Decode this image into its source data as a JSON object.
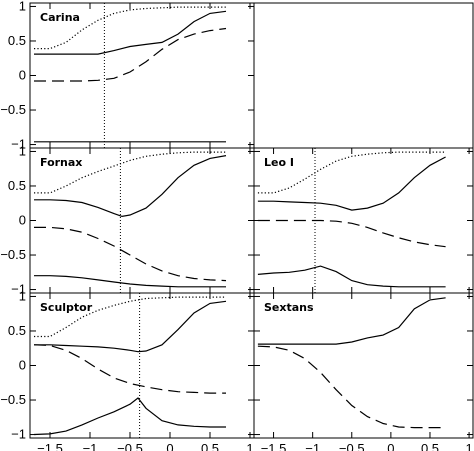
{
  "chart_data": {
    "type": "line",
    "layout": "3x2 grid of panels, top-right panel empty",
    "x_ticks": [
      -1.5,
      -1,
      -0.5,
      0,
      0.5,
      1
    ],
    "x_tick_labels": [
      "−1.5",
      "−1",
      "−0.5",
      "0",
      "0.5",
      "1"
    ],
    "y_ticks": [
      -1,
      -0.5,
      0,
      0.5,
      1
    ],
    "y_tick_labels": [
      "−1",
      "−0.5",
      "0",
      "0.5",
      "1"
    ],
    "xlim": [
      -1.75,
      1.05
    ],
    "ylim": [
      -1.05,
      1.05
    ],
    "panels": [
      {
        "label": "Carina",
        "vline_x": -0.82,
        "series": [
          {
            "style": "dotted",
            "x": [
              -1.7,
              -1.5,
              -1.3,
              -1.1,
              -0.9,
              -0.7,
              -0.5,
              -0.3,
              -0.1,
              0.1,
              0.3,
              0.5,
              0.7
            ],
            "y": [
              0.39,
              0.39,
              0.48,
              0.66,
              0.8,
              0.9,
              0.95,
              0.97,
              0.98,
              0.99,
              0.99,
              0.99,
              0.99
            ]
          },
          {
            "style": "solid",
            "x": [
              -1.7,
              -1.5,
              -1.3,
              -1.1,
              -0.9,
              -0.7,
              -0.5,
              -0.3,
              -0.1,
              0.1,
              0.3,
              0.5,
              0.7
            ],
            "y": [
              0.31,
              0.31,
              0.31,
              0.31,
              0.31,
              0.36,
              0.42,
              0.45,
              0.48,
              0.6,
              0.78,
              0.9,
              0.93
            ]
          },
          {
            "style": "dashed",
            "x": [
              -1.7,
              -1.5,
              -1.3,
              -1.1,
              -0.9,
              -0.7,
              -0.5,
              -0.3,
              -0.1,
              0.1,
              0.3,
              0.5,
              0.7
            ],
            "y": [
              -0.08,
              -0.08,
              -0.08,
              -0.08,
              -0.07,
              -0.04,
              0.05,
              0.2,
              0.38,
              0.52,
              0.6,
              0.65,
              0.68
            ]
          },
          {
            "style": "solid",
            "x": [
              -1.7,
              0.7
            ],
            "y": [
              -0.96,
              -0.96
            ]
          }
        ]
      },
      {
        "label": "Fornax",
        "vline_x": -0.62,
        "series": [
          {
            "style": "dotted",
            "x": [
              -1.7,
              -1.5,
              -1.3,
              -1.1,
              -0.9,
              -0.7,
              -0.5,
              -0.3,
              -0.1,
              0.1,
              0.3,
              0.5,
              0.7
            ],
            "y": [
              0.4,
              0.4,
              0.5,
              0.62,
              0.71,
              0.79,
              0.87,
              0.93,
              0.96,
              0.98,
              0.99,
              0.99,
              0.99
            ]
          },
          {
            "style": "solid",
            "x": [
              -1.7,
              -1.5,
              -1.3,
              -1.1,
              -0.9,
              -0.7,
              -0.6,
              -0.5,
              -0.3,
              -0.1,
              0.1,
              0.3,
              0.5,
              0.7
            ],
            "y": [
              0.3,
              0.3,
              0.29,
              0.26,
              0.19,
              0.1,
              0.06,
              0.08,
              0.18,
              0.38,
              0.62,
              0.8,
              0.9,
              0.94
            ]
          },
          {
            "style": "dashed",
            "x": [
              -1.7,
              -1.5,
              -1.3,
              -1.1,
              -0.9,
              -0.7,
              -0.5,
              -0.3,
              -0.1,
              0.1,
              0.3,
              0.5,
              0.7
            ],
            "y": [
              -0.1,
              -0.1,
              -0.12,
              -0.17,
              -0.26,
              -0.37,
              -0.5,
              -0.63,
              -0.73,
              -0.8,
              -0.84,
              -0.86,
              -0.87
            ]
          },
          {
            "style": "solid",
            "x": [
              -1.7,
              -1.5,
              -1.3,
              -1.1,
              -0.9,
              -0.7,
              -0.5,
              -0.3,
              -0.1,
              0.1,
              0.3,
              0.5,
              0.7
            ],
            "y": [
              -0.8,
              -0.8,
              -0.81,
              -0.83,
              -0.86,
              -0.89,
              -0.92,
              -0.94,
              -0.95,
              -0.96,
              -0.96,
              -0.96,
              -0.96
            ]
          }
        ]
      },
      {
        "label": "Leo I",
        "vline_x": -0.97,
        "series": [
          {
            "style": "dotted",
            "x": [
              -1.7,
              -1.5,
              -1.3,
              -1.1,
              -0.9,
              -0.7,
              -0.5,
              -0.3,
              -0.1,
              0.1,
              0.3,
              0.5,
              0.7
            ],
            "y": [
              0.4,
              0.4,
              0.47,
              0.6,
              0.74,
              0.86,
              0.93,
              0.96,
              0.98,
              0.99,
              0.99,
              0.99,
              0.99
            ]
          },
          {
            "style": "solid",
            "x": [
              -1.7,
              -1.5,
              -1.3,
              -1.1,
              -0.9,
              -0.7,
              -0.5,
              -0.3,
              -0.1,
              0.1,
              0.3,
              0.5,
              0.7
            ],
            "y": [
              0.28,
              0.28,
              0.27,
              0.26,
              0.25,
              0.22,
              0.15,
              0.18,
              0.25,
              0.4,
              0.62,
              0.8,
              0.92
            ]
          },
          {
            "style": "dashed",
            "x": [
              -1.7,
              -1.5,
              -1.3,
              -1.1,
              -0.9,
              -0.7,
              -0.5,
              -0.3,
              -0.1,
              0.1,
              0.3,
              0.5,
              0.7
            ],
            "y": [
              0.0,
              0.0,
              0.0,
              0.0,
              0.0,
              -0.01,
              -0.04,
              -0.1,
              -0.18,
              -0.25,
              -0.31,
              -0.35,
              -0.38
            ]
          },
          {
            "style": "solid",
            "x": [
              -1.7,
              -1.5,
              -1.3,
              -1.1,
              -0.9,
              -0.7,
              -0.5,
              -0.3,
              -0.1,
              0.1,
              0.3,
              0.5,
              0.7
            ],
            "y": [
              -0.78,
              -0.76,
              -0.75,
              -0.72,
              -0.66,
              -0.74,
              -0.87,
              -0.93,
              -0.95,
              -0.96,
              -0.96,
              -0.96,
              -0.96
            ]
          }
        ]
      },
      {
        "label": "Sculptor",
        "vline_x": -0.38,
        "series": [
          {
            "style": "dotted",
            "x": [
              -1.7,
              -1.5,
              -1.3,
              -1.1,
              -0.9,
              -0.7,
              -0.5,
              -0.3,
              -0.1,
              0.1,
              0.3,
              0.5,
              0.7
            ],
            "y": [
              0.42,
              0.42,
              0.55,
              0.7,
              0.8,
              0.87,
              0.93,
              0.97,
              0.98,
              0.99,
              0.99,
              0.99,
              0.99
            ]
          },
          {
            "style": "solid",
            "x": [
              -1.7,
              -1.5,
              -1.3,
              -1.1,
              -0.9,
              -0.7,
              -0.5,
              -0.4,
              -0.3,
              -0.1,
              0.1,
              0.3,
              0.5,
              0.7
            ],
            "y": [
              0.3,
              0.3,
              0.29,
              0.28,
              0.27,
              0.25,
              0.22,
              0.2,
              0.21,
              0.3,
              0.52,
              0.76,
              0.9,
              0.93
            ]
          },
          {
            "style": "dashed",
            "x": [
              -1.7,
              -1.5,
              -1.3,
              -1.1,
              -0.9,
              -0.7,
              -0.5,
              -0.3,
              -0.1,
              0.1,
              0.3,
              0.5,
              0.7
            ],
            "y": [
              0.3,
              0.29,
              0.22,
              0.1,
              -0.05,
              -0.18,
              -0.26,
              -0.31,
              -0.35,
              -0.38,
              -0.39,
              -0.4,
              -0.4
            ]
          },
          {
            "style": "solid",
            "x": [
              -1.7,
              -1.5,
              -1.3,
              -1.1,
              -0.9,
              -0.7,
              -0.5,
              -0.4,
              -0.3,
              -0.1,
              0.1,
              0.3,
              0.5,
              0.7
            ],
            "y": [
              -1.0,
              -0.99,
              -0.95,
              -0.86,
              -0.76,
              -0.67,
              -0.56,
              -0.47,
              -0.62,
              -0.8,
              -0.86,
              -0.88,
              -0.89,
              -0.89
            ]
          }
        ]
      },
      {
        "label": "Sextans",
        "vline_x": null,
        "series": [
          {
            "style": "solid",
            "x": [
              -1.7,
              -1.5,
              -1.3,
              -1.1,
              -0.9,
              -0.7,
              -0.5,
              -0.3,
              -0.1,
              0.1,
              0.3,
              0.5,
              0.7
            ],
            "y": [
              0.31,
              0.31,
              0.31,
              0.31,
              0.31,
              0.31,
              0.34,
              0.4,
              0.44,
              0.55,
              0.82,
              0.95,
              0.98
            ]
          },
          {
            "style": "dashed",
            "x": [
              -1.7,
              -1.5,
              -1.3,
              -1.1,
              -0.9,
              -0.7,
              -0.5,
              -0.3,
              -0.1,
              0.1,
              0.3,
              0.5,
              0.7
            ],
            "y": [
              0.28,
              0.27,
              0.22,
              0.1,
              -0.1,
              -0.35,
              -0.58,
              -0.74,
              -0.84,
              -0.89,
              -0.9,
              -0.9,
              -0.9
            ]
          }
        ]
      }
    ]
  }
}
